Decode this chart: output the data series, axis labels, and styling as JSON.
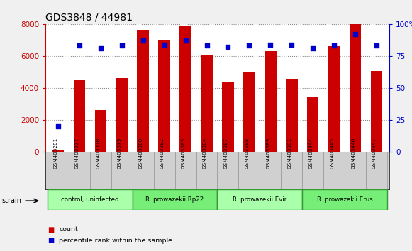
{
  "title": "GDS3848 / 44981",
  "samples": [
    "GSM403281",
    "GSM403377",
    "GSM403378",
    "GSM403379",
    "GSM403380",
    "GSM403382",
    "GSM403383",
    "GSM403384",
    "GSM403387",
    "GSM403388",
    "GSM403389",
    "GSM403391",
    "GSM403444",
    "GSM403445",
    "GSM403446",
    "GSM403447"
  ],
  "counts": [
    100,
    4500,
    2600,
    4600,
    7650,
    6950,
    7850,
    6050,
    4400,
    4950,
    6300,
    4550,
    3400,
    6600,
    8000,
    5050
  ],
  "percentiles": [
    20,
    83,
    81,
    83,
    87,
    84,
    87,
    83,
    82,
    83,
    84,
    84,
    81,
    83,
    92,
    83
  ],
  "groups": [
    {
      "label": "control, uninfected",
      "start": 0,
      "end": 4,
      "color": "#aaffaa"
    },
    {
      "label": "R. prowazekii Rp22",
      "start": 4,
      "end": 8,
      "color": "#77ee77"
    },
    {
      "label": "R. prowazekii Evir",
      "start": 8,
      "end": 12,
      "color": "#aaffaa"
    },
    {
      "label": "R. prowazekii Erus",
      "start": 12,
      "end": 16,
      "color": "#77ee77"
    }
  ],
  "bar_color": "#cc0000",
  "dot_color": "#0000cc",
  "left_axis_color": "#cc0000",
  "right_axis_color": "#0000cc",
  "ylim_left": [
    0,
    8000
  ],
  "ylim_right": [
    0,
    100
  ],
  "yticks_left": [
    0,
    2000,
    4000,
    6000,
    8000
  ],
  "yticks_right": [
    0,
    25,
    50,
    75,
    100
  ],
  "right_tick_labels": [
    "0",
    "25",
    "50",
    "75",
    "100%"
  ],
  "strain_label": "strain",
  "legend_count": "count",
  "legend_pct": "percentile rank within the sample",
  "bg_color": "#f0f0f0",
  "plot_bg": "#ffffff",
  "sample_bg": "#d0d0d0",
  "grid_color": "#888888"
}
